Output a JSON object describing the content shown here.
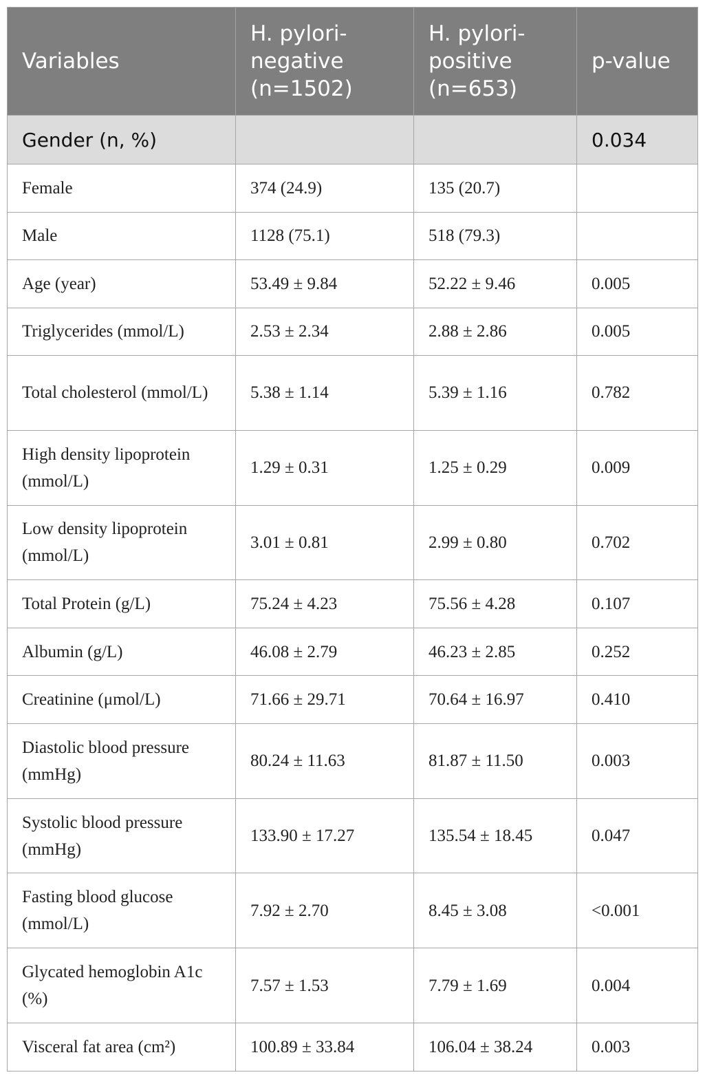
{
  "table": {
    "header": [
      "Variables",
      "H. pylori-negative (n=1502)",
      "H. pylori-positive (n=653)",
      "p-value"
    ],
    "group": {
      "label": "Gender (n, %)",
      "p_value": "0.034",
      "rows": [
        [
          "Female",
          "374 (24.9)",
          "135 (20.7)"
        ],
        [
          "Male",
          "1128 (75.1)",
          "518 (79.3)"
        ]
      ]
    },
    "rows": [
      [
        "Age (year)",
        "53.49 ± 9.84",
        "52.22 ± 9.46",
        "0.005"
      ],
      [
        "Triglycerides (mmol/L)",
        "2.53 ± 2.34",
        "2.88 ± 2.86",
        "0.005"
      ],
      [
        "Total cholesterol (mmol/L)",
        "5.38 ± 1.14",
        "5.39 ± 1.16",
        "0.782"
      ],
      [
        "High density lipoprotein (mmol/L)",
        "1.29 ± 0.31",
        "1.25 ± 0.29",
        "0.009"
      ],
      [
        "Low density lipoprotein (mmol/L)",
        "3.01 ± 0.81",
        "2.99 ± 0.80",
        "0.702"
      ],
      [
        "Total Protein (g/L)",
        "75.24 ± 4.23",
        "75.56 ± 4.28",
        "0.107"
      ],
      [
        "Albumin (g/L)",
        "46.08 ± 2.79",
        "46.23 ± 2.85",
        "0.252"
      ],
      [
        "Creatinine (μmol/L)",
        "71.66 ± 29.71",
        "70.64 ± 16.97",
        "0.410"
      ],
      [
        "Diastolic blood pressure (mmHg)",
        "80.24 ± 11.63",
        "81.87 ± 11.50",
        "0.003"
      ],
      [
        "Systolic blood pressure (mmHg)",
        "133.90 ± 17.27",
        "135.54 ± 18.45",
        "0.047"
      ],
      [
        "Fasting blood glucose (mmol/L)",
        "7.92 ± 2.70",
        "8.45 ± 3.08",
        "<0.001"
      ],
      [
        "Glycated hemoglobin A1c (%)",
        "7.57 ± 1.53",
        "7.79 ± 1.69",
        "0.004"
      ],
      [
        "Visceral fat area (cm²)",
        "100.89 ± 33.84",
        "106.04 ± 38.24",
        "0.003"
      ]
    ]
  }
}
